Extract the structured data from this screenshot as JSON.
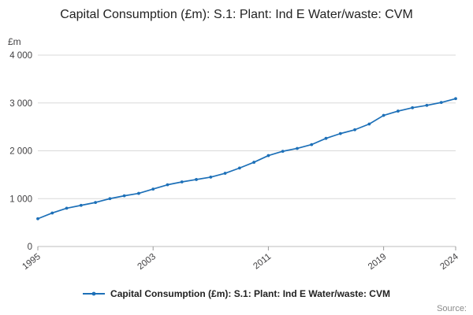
{
  "title": "Capital Consumption (£m): S.1: Plant: Ind E Water/waste: CVM",
  "source": "Source:",
  "legend": {
    "label": "Capital Consumption (£m): S.1: Plant: Ind E Water/waste: CVM"
  },
  "chart_data": {
    "type": "line",
    "title": "Capital Consumption (£m): S.1: Plant: Ind E Water/waste: CVM",
    "xlabel": "",
    "ylabel": "£m",
    "x": [
      1995,
      1996,
      1997,
      1998,
      1999,
      2000,
      2001,
      2002,
      2003,
      2004,
      2005,
      2006,
      2007,
      2008,
      2009,
      2010,
      2011,
      2012,
      2013,
      2014,
      2015,
      2016,
      2017,
      2018,
      2019,
      2020,
      2021,
      2022,
      2023,
      2024
    ],
    "series": [
      {
        "name": "Capital Consumption (£m): S.1: Plant: Ind E Water/waste: CVM",
        "values": [
          580,
          700,
          800,
          860,
          920,
          1000,
          1060,
          1110,
          1200,
          1290,
          1350,
          1400,
          1450,
          1530,
          1640,
          1760,
          1900,
          1990,
          2050,
          2130,
          2260,
          2360,
          2440,
          2560,
          2740,
          2830,
          2900,
          2950,
          3010,
          3090
        ]
      }
    ],
    "xlim": [
      1995,
      2024
    ],
    "ylim": [
      0,
      4000
    ],
    "x_ticks": [
      1995,
      2003,
      2011,
      2019,
      2024
    ],
    "y_ticks": [
      {
        "value": 0,
        "label": "0"
      },
      {
        "value": 1000,
        "label": "1 000"
      },
      {
        "value": 2000,
        "label": "2 000"
      },
      {
        "value": 3000,
        "label": "3 000"
      },
      {
        "value": 4000,
        "label": "4 000"
      }
    ],
    "grid": true,
    "legend_position": "bottom",
    "line_color": "#1d70b8",
    "grid_color": "#d9d9d9",
    "tick_label_color": "#414042"
  }
}
